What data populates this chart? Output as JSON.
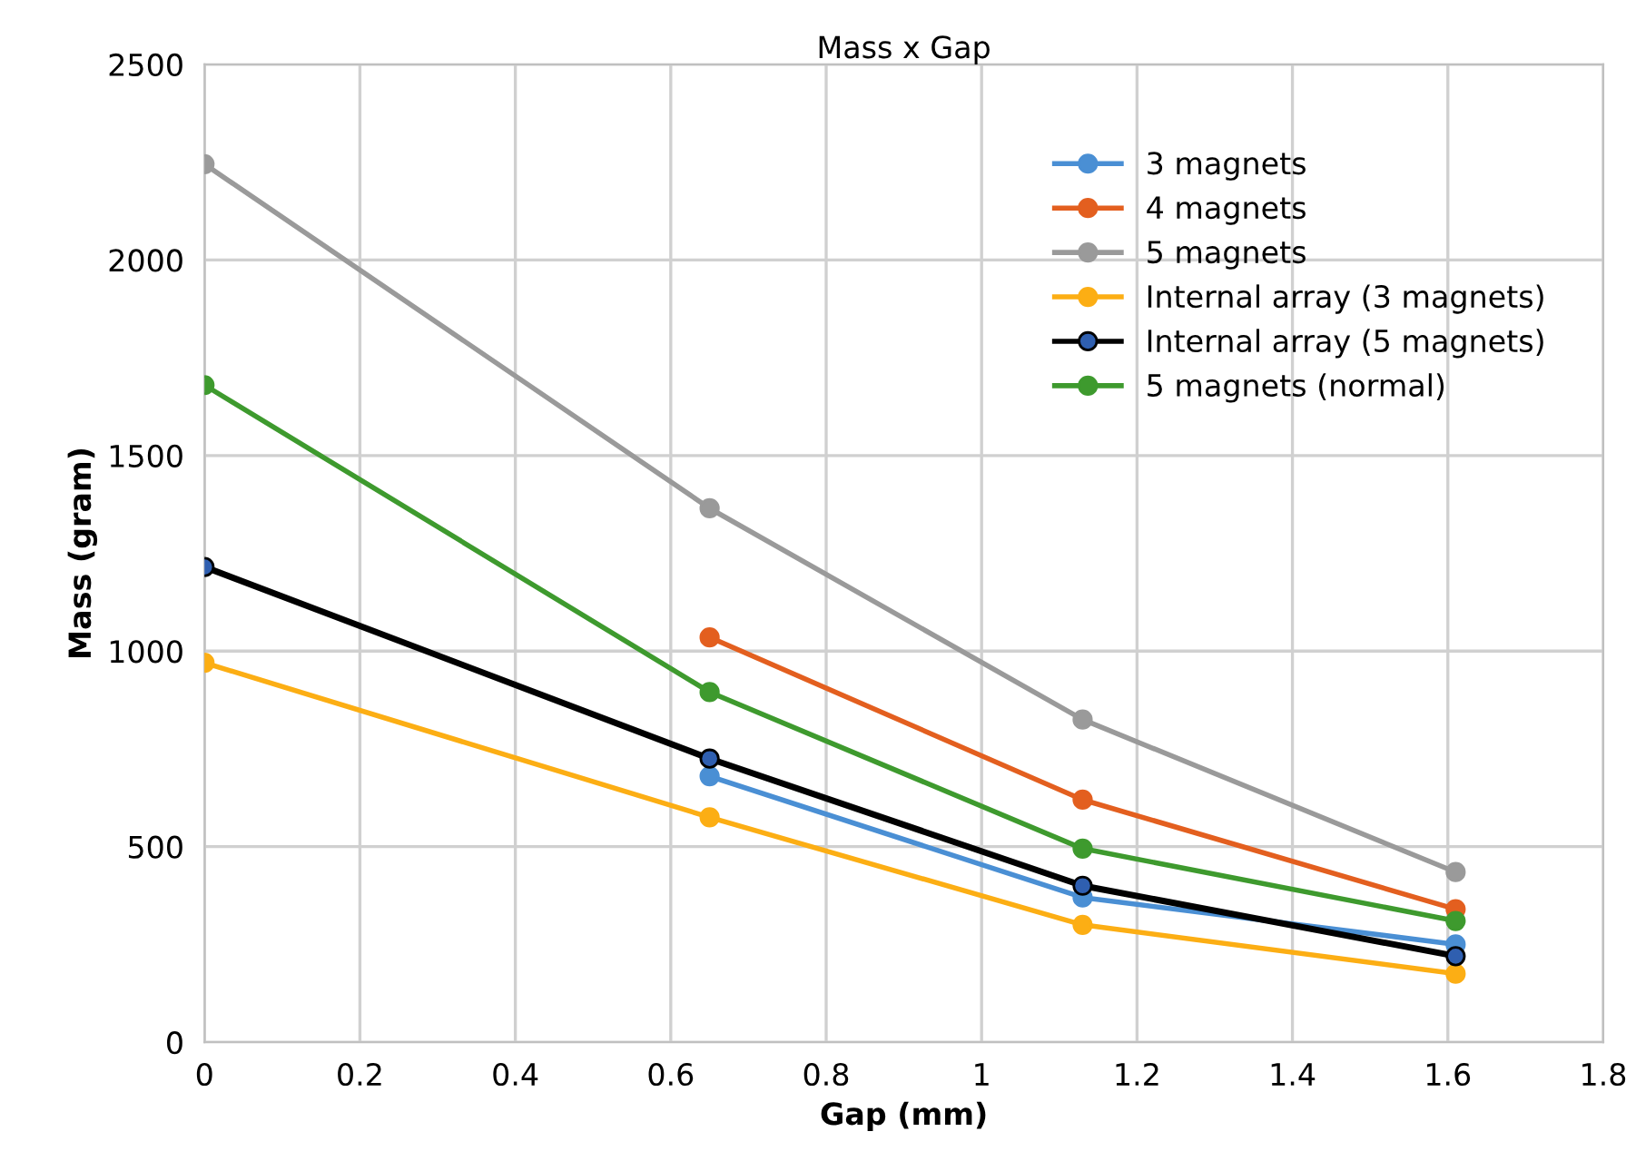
{
  "chart_data": {
    "type": "line",
    "title": "Mass x Gap",
    "xlabel": "Gap (mm)",
    "ylabel": "Mass (gram)",
    "x": [
      0,
      0.65,
      1.13,
      1.61
    ],
    "series": [
      {
        "name": "3 magnets",
        "color": "#4a8fd4",
        "values": [
          null,
          680,
          370,
          250
        ]
      },
      {
        "name": "4 magnets",
        "color": "#e35f1f",
        "values": [
          null,
          1035,
          620,
          340
        ]
      },
      {
        "name": "5 magnets",
        "color": "#9a9a9a",
        "values": [
          2245,
          1365,
          825,
          435
        ]
      },
      {
        "name": "Internal array (3 magnets)",
        "color": "#fcae14",
        "values": [
          970,
          575,
          300,
          175
        ]
      },
      {
        "name": "Internal array (5 magnets)",
        "color": "#000000",
        "values": [
          1215,
          725,
          400,
          220
        ]
      },
      {
        "name": "5 magnets (normal)",
        "color": "#3e9a2e",
        "values": [
          1680,
          895,
          495,
          310
        ]
      }
    ],
    "xlim": [
      0,
      1.8
    ],
    "xticks": [
      0,
      {
        "value": 0.2,
        "label": "0.2"
      },
      {
        "value": 0.4,
        "label": "0.4"
      },
      {
        "value": 0.6,
        "label": "0.6"
      },
      {
        "value": 0.8,
        "label": "0.8"
      },
      1,
      {
        "value": 1.2,
        "label": "1.2"
      },
      {
        "value": 1.4,
        "label": "1.4"
      },
      {
        "value": 1.6,
        "label": "1.6"
      },
      {
        "value": 1.8,
        "label": "1.8"
      }
    ],
    "ylim": [
      0,
      2500
    ],
    "yticks": [
      0,
      500,
      1000,
      1500,
      2000,
      2500
    ],
    "grid": true,
    "legend": "top right",
    "marker": "circle",
    "line_style": "solid"
  }
}
